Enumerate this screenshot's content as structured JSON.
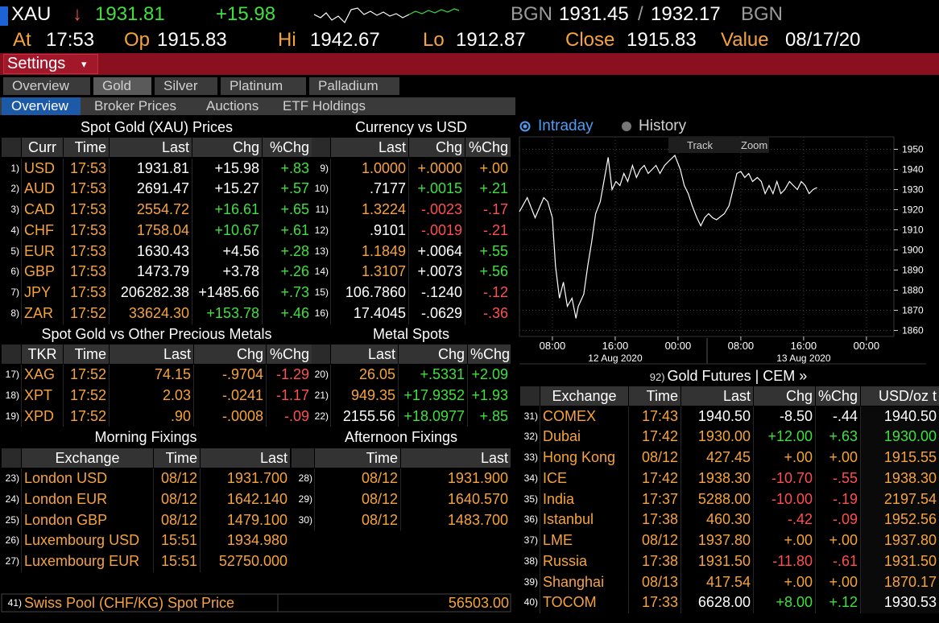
{
  "header": {
    "ticker": "XAU",
    "arrow": "↓",
    "last": "1931.81",
    "change": "+15.98",
    "source1": "BGN",
    "bid": "1931.45",
    "sep": "/",
    "ask": "1932.17",
    "source2": "BGN",
    "at_label": "At",
    "at": "17:53",
    "op_label": "Op",
    "op": "1915.83",
    "hi_label": "Hi",
    "hi": "1942.67",
    "lo_label": "Lo",
    "lo": "1912.87",
    "close_label": "Close",
    "close": "1915.83",
    "value_label": "Value",
    "value": "08/17/20"
  },
  "settings": {
    "label": "Settings",
    "caret": "▾"
  },
  "tabs": [
    "Overview",
    "Gold",
    "Silver",
    "Platinum",
    "Palladium"
  ],
  "subtabs": [
    "Overview",
    "Broker Prices",
    "Auctions",
    "ETF Holdings"
  ],
  "spot": {
    "title": "Spot Gold (XAU) Prices",
    "columns": [
      "Curr",
      "Time",
      "Last",
      "Chg",
      "%Chg"
    ],
    "rows": [
      [
        "1)",
        "USD",
        "17:53",
        "1931.81",
        "+15.98",
        "+.83"
      ],
      [
        "2)",
        "AUD",
        "17:53",
        "2691.47",
        "+15.27",
        "+.57"
      ],
      [
        "3)",
        "CAD",
        "17:53",
        "2554.72",
        "+16.61",
        "+.65"
      ],
      [
        "4)",
        "CHF",
        "17:53",
        "1758.04",
        "+10.67",
        "+.61"
      ],
      [
        "5)",
        "EUR",
        "17:53",
        "1630.43",
        "+4.56",
        "+.28"
      ],
      [
        "6)",
        "GBP",
        "17:53",
        "1473.79",
        "+3.78",
        "+.26"
      ],
      [
        "7)",
        "JPY",
        "17:53",
        "206282.38",
        "+1485.66",
        "+.73"
      ],
      [
        "8)",
        "ZAR",
        "17:52",
        "33624.30",
        "+153.78",
        "+.46"
      ]
    ]
  },
  "currency": {
    "title": "Currency vs USD",
    "columns": [
      "Last",
      "Chg",
      "%Chg"
    ],
    "rows": [
      [
        "9)",
        "1.0000",
        "+.0000",
        "+.00"
      ],
      [
        "10)",
        ".7177",
        "+.0015",
        "+.21"
      ],
      [
        "11)",
        "1.3224",
        "-.0023",
        "-.17"
      ],
      [
        "12)",
        ".9101",
        "-.0019",
        "-.21"
      ],
      [
        "13)",
        "1.1849",
        "+.0064",
        "+.55"
      ],
      [
        "14)",
        "1.3107",
        "+.0073",
        "+.56"
      ],
      [
        "15)",
        "106.7860",
        "-.1240",
        "-.12"
      ],
      [
        "16)",
        "17.4045",
        "-.0629",
        "-.36"
      ]
    ]
  },
  "metals": {
    "title": "Spot Gold vs Other Precious Metals",
    "columns": [
      "TKR",
      "Time",
      "Last",
      "Chg",
      "%Chg"
    ],
    "rows": [
      [
        "17)",
        "XAG",
        "17:52",
        "74.15",
        "-.9704",
        "-1.29"
      ],
      [
        "18)",
        "XPT",
        "17:52",
        "2.03",
        "-.0241",
        "-1.17"
      ],
      [
        "19)",
        "XPD",
        "17:52",
        ".90",
        "-.0008",
        "-.09"
      ]
    ]
  },
  "metal_spots": {
    "title": "Metal Spots",
    "columns": [
      "Last",
      "Chg",
      "%Chg"
    ],
    "rows": [
      [
        "20)",
        "26.05",
        "+.5331",
        "+2.09"
      ],
      [
        "21)",
        "949.35",
        "+17.9352",
        "+1.93"
      ],
      [
        "22)",
        "2155.56",
        "+18.0977",
        "+.85"
      ]
    ]
  },
  "morning": {
    "title": "Morning Fixings",
    "columns": [
      "Exchange",
      "Time",
      "Last"
    ],
    "rows": [
      [
        "23)",
        "London USD",
        "08/12",
        "1931.700"
      ],
      [
        "24)",
        "London EUR",
        "08/12",
        "1642.140"
      ],
      [
        "25)",
        "London GBP",
        "08/12",
        "1479.100"
      ],
      [
        "26)",
        "Luxembourg USD",
        "15:51",
        "1934.980"
      ],
      [
        "27)",
        "Luxembourg EUR",
        "15:51",
        "52750.000"
      ]
    ]
  },
  "afternoon": {
    "title": "Afternoon Fixings",
    "columns": [
      "Time",
      "Last"
    ],
    "rows": [
      [
        "28)",
        "08/12",
        "1931.900"
      ],
      [
        "29)",
        "08/12",
        "1640.570"
      ],
      [
        "30)",
        "08/12",
        "1483.700"
      ]
    ]
  },
  "swiss": {
    "num": "41)",
    "label": "Swiss Pool (CHF/KG) Spot Price",
    "value": "56503.00"
  },
  "chart_panel": {
    "options": [
      "Intraday",
      "History"
    ],
    "tools": [
      "Track",
      "Zoom"
    ]
  },
  "chart_data": {
    "type": "line",
    "color": "#ffffff",
    "grid": true,
    "x": [
      3.8,
      4.8,
      5.8,
      6.9,
      7.4,
      8.0,
      8.4,
      8.9,
      9.4,
      9.9,
      10.5,
      11.0,
      11.3,
      12.0,
      12.5,
      13.0,
      13.5,
      14.1,
      14.6,
      15.1,
      15.6,
      16.1,
      16.6,
      17.1,
      17.6,
      18.2,
      18.7,
      19.2,
      19.7,
      20.2,
      20.7,
      21.2,
      21.7,
      22.3,
      22.8,
      23.6,
      24.3,
      24.8,
      25.3,
      25.8,
      26.4,
      26.9,
      27.4,
      27.9,
      28.4,
      28.9,
      29.9,
      30.5,
      31.0,
      31.5,
      32.0,
      32.5,
      33.0,
      33.5,
      34.1,
      34.6,
      35.1,
      35.6,
      36.1,
      36.6,
      37.1,
      37.6,
      38.2,
      38.7,
      39.2,
      39.7,
      40.2,
      40.7,
      41.2,
      41.7
    ],
    "values": [
      1919,
      1926,
      1916,
      1926,
      1924,
      1916,
      1892,
      1876,
      1884,
      1872,
      1876,
      1866,
      1872,
      1878,
      1892,
      1904,
      1918,
      1924,
      1935,
      1946,
      1930,
      1934,
      1932,
      1938,
      1934,
      1942,
      1936,
      1940,
      1942,
      1938,
      1940,
      1942,
      1938,
      1942,
      1944,
      1947,
      1940,
      1932,
      1928,
      1922,
      1916,
      1912,
      1916,
      1918,
      1916,
      1915,
      1918,
      1922,
      1930,
      1938,
      1939,
      1936,
      1938,
      1934,
      1936,
      1934,
      1928,
      1932,
      1928,
      1934,
      1928,
      1930,
      1934,
      1932,
      1930,
      1934,
      1932,
      1928,
      1930,
      1931
    ],
    "xlim": [
      3.8,
      51.5
    ],
    "ylim": [
      1857,
      1953
    ],
    "xticks": [
      {
        "value": 8,
        "label": "08:00"
      },
      {
        "value": 16,
        "label": "16:00"
      },
      {
        "value": 24,
        "label": "00:00"
      },
      {
        "value": 32,
        "label": "08:00"
      },
      {
        "value": 40,
        "label": "16:00"
      },
      {
        "value": 48,
        "label": "00:00"
      }
    ],
    "dates": [
      {
        "value": 16,
        "label": "12 Aug 2020"
      },
      {
        "value": 40,
        "label": "13 Aug 2020"
      }
    ],
    "yticks": [
      1860,
      1870,
      1880,
      1890,
      1900,
      1910,
      1920,
      1930,
      1940,
      1950
    ]
  },
  "futures": {
    "num": "92)",
    "title": "Gold Futures | CEM »",
    "columns": [
      "Exchange",
      "Time",
      "Last",
      "Chg",
      "%Chg",
      "USD/oz t"
    ],
    "rows": [
      [
        "31)",
        "COMEX",
        "17:43",
        "1940.50",
        "-8.50",
        "-.44",
        "1940.50"
      ],
      [
        "32)",
        "Dubai",
        "17:42",
        "1930.00",
        "+12.00",
        "+.63",
        "1930.00"
      ],
      [
        "33)",
        "Hong Kong",
        "08/12",
        "427.45",
        "+.00",
        "+.00",
        "1915.55"
      ],
      [
        "34)",
        "ICE",
        "17:42",
        "1938.30",
        "-10.70",
        "-.55",
        "1938.30"
      ],
      [
        "35)",
        "India",
        "17:37",
        "5288.00",
        "-10.00",
        "-.19",
        "2197.54"
      ],
      [
        "36)",
        "Istanbul",
        "17:38",
        "460.30",
        "-.42",
        "-.09",
        "1952.56"
      ],
      [
        "37)",
        "LME",
        "08/12",
        "1937.80",
        "+.00",
        "+.00",
        "1937.80"
      ],
      [
        "38)",
        "Russia",
        "17:38",
        "1931.50",
        "-11.80",
        "-.61",
        "1931.50"
      ],
      [
        "39)",
        "Shanghai",
        "08/13",
        "417.54",
        "+.00",
        "+.00",
        "1870.17"
      ],
      [
        "40)",
        "TOCOM",
        "17:33",
        "6628.00",
        "+8.00",
        "+.12",
        "1930.53"
      ]
    ]
  }
}
